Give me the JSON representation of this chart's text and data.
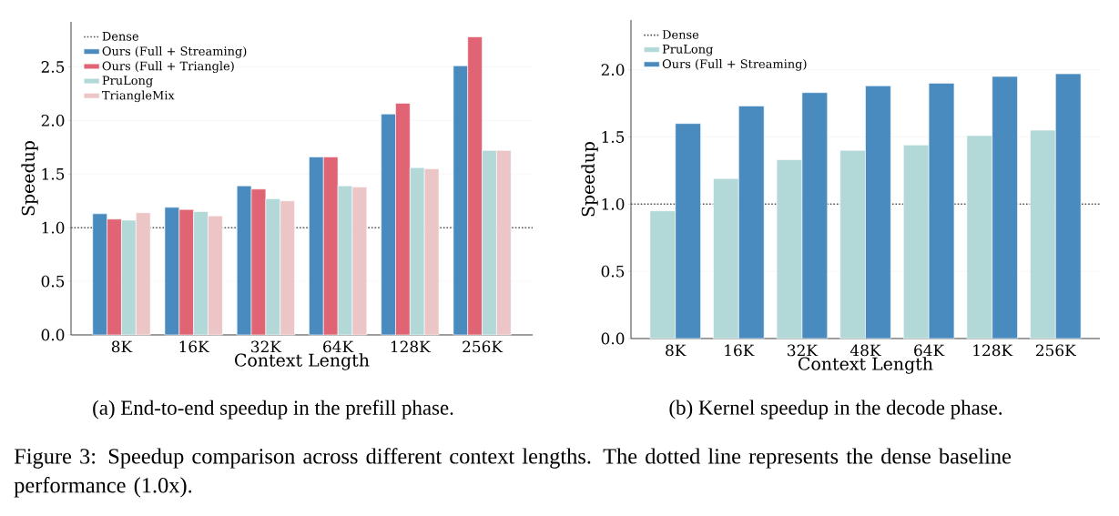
{
  "chart_data": [
    {
      "type": "bar",
      "xlabel": "Context Length",
      "ylabel": "Speedup",
      "categories": [
        "8K",
        "16K",
        "32K",
        "64K",
        "128K",
        "256K"
      ],
      "series": [
        {
          "name": "Ours (Full + Streaming)",
          "color": "#4a8bbf",
          "values": [
            1.13,
            1.19,
            1.39,
            1.66,
            2.06,
            2.51
          ]
        },
        {
          "name": "Ours (Full + Triangle)",
          "color": "#e06474",
          "values": [
            1.08,
            1.17,
            1.36,
            1.66,
            2.16,
            2.78
          ]
        },
        {
          "name": "PruLong",
          "color": "#b3d8d8",
          "values": [
            1.07,
            1.15,
            1.27,
            1.39,
            1.56,
            1.72
          ]
        },
        {
          "name": "TriangleMix",
          "color": "#ecc5c6",
          "values": [
            1.14,
            1.11,
            1.25,
            1.38,
            1.55,
            1.72
          ]
        }
      ],
      "ylim": [
        0,
        2.92
      ],
      "yticks": [
        {
          "value": 0,
          "label": "0.0"
        },
        {
          "value": 0.5,
          "label": "0.5"
        },
        {
          "value": 1,
          "label": "1.0"
        },
        {
          "value": 1.5,
          "label": "1.5"
        },
        {
          "value": 2,
          "label": "2.0"
        },
        {
          "value": 2.5,
          "label": "2.5"
        }
      ],
      "grid": "y",
      "legend": "top left",
      "ref_lines": [
        {
          "axis": "y",
          "value": 1.0,
          "label": "Dense",
          "color": "#555555",
          "line_style": "dotted"
        }
      ],
      "annotations": [
        "(a) End-to-end speedup in the prefill phase.",
        "Figure 3: Speedup comparison across different context lengths. The dotted line represents the dense baseline performance (1.0x)."
      ]
    },
    {
      "type": "bar",
      "xlabel": "Context Length",
      "ylabel": "Speedup",
      "categories": [
        "8K",
        "16K",
        "32K",
        "48K",
        "64K",
        "128K",
        "256K"
      ],
      "series": [
        {
          "name": "PruLong",
          "color": "#b3d8d8",
          "values": [
            0.95,
            1.19,
            1.33,
            1.4,
            1.44,
            1.51,
            1.55
          ]
        },
        {
          "name": "Ours (Full + Streaming)",
          "color": "#4a8bbf",
          "values": [
            1.6,
            1.73,
            1.83,
            1.88,
            1.9,
            1.95,
            1.97
          ]
        }
      ],
      "ylim": [
        0,
        2.37
      ],
      "yticks": [
        {
          "value": 0,
          "label": "0.0"
        },
        {
          "value": 0.5,
          "label": "0.5"
        },
        {
          "value": 1,
          "label": "1.0"
        },
        {
          "value": 1.5,
          "label": "1.5"
        },
        {
          "value": 2,
          "label": "2.0"
        }
      ],
      "grid": "y",
      "legend": "top left",
      "ref_lines": [
        {
          "axis": "y",
          "value": 1.0,
          "label": "Dense",
          "color": "#555555",
          "line_style": "dotted"
        }
      ],
      "annotations": [
        "(b) Kernel speedup in the decode phase."
      ]
    }
  ]
}
